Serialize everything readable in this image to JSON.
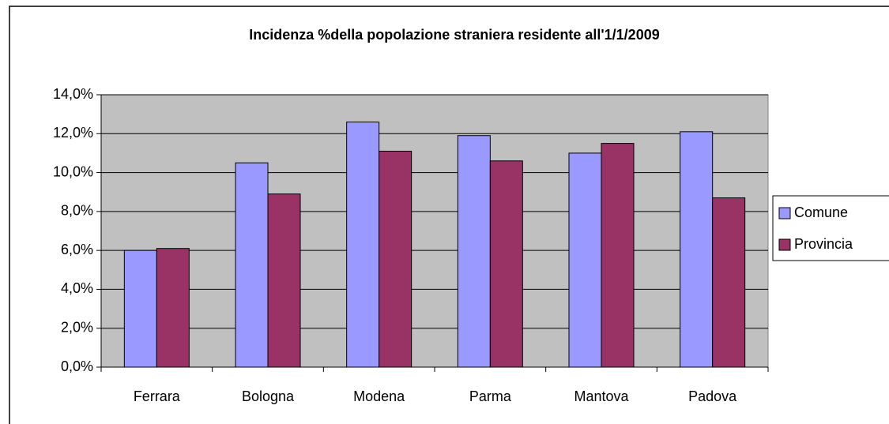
{
  "chart_data": {
    "type": "bar",
    "title": "Incidenza %della popolazione straniera residente all'1/1/2009",
    "categories": [
      "Ferrara",
      "Bologna",
      "Modena",
      "Parma",
      "Mantova",
      "Padova"
    ],
    "series": [
      {
        "name": "Comune",
        "color": "#9999ff",
        "values": [
          6.0,
          10.5,
          12.6,
          11.9,
          11.0,
          12.1
        ]
      },
      {
        "name": "Provincia",
        "color": "#993366",
        "values": [
          6.1,
          8.9,
          11.1,
          10.6,
          11.5,
          8.7
        ]
      }
    ],
    "ylim": [
      0,
      14
    ],
    "yticks": [
      {
        "value": 0,
        "label": "0,0%"
      },
      {
        "value": 2,
        "label": "2,0%"
      },
      {
        "value": 4,
        "label": "4,0%"
      },
      {
        "value": 6,
        "label": "6,0%"
      },
      {
        "value": 8,
        "label": "8,0%"
      },
      {
        "value": 10,
        "label": "10,0%"
      },
      {
        "value": 12,
        "label": "12,0%"
      },
      {
        "value": 14,
        "label": "14,0%"
      }
    ],
    "grid": true,
    "legend": "right"
  }
}
